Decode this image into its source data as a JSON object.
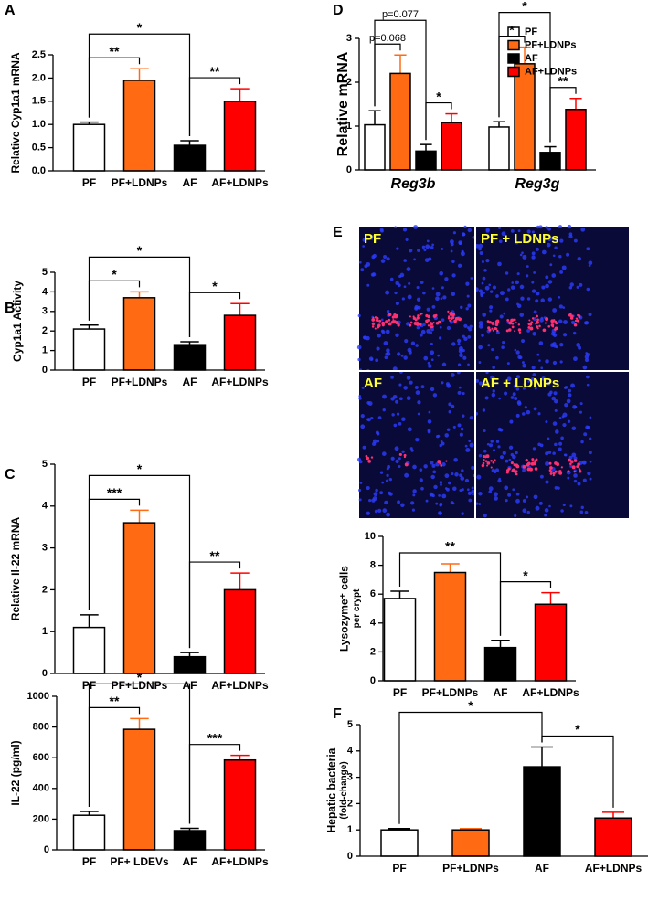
{
  "chart_data": [
    {
      "type": "bar",
      "panel": "A",
      "ylabel": [
        "Relative Cyp1a1 mRNA"
      ],
      "categories": [
        "PF",
        "PF+LDNPs",
        "AF",
        "AF+LDNPs"
      ],
      "values": [
        1.0,
        1.95,
        0.55,
        1.5
      ],
      "errors": [
        0.05,
        0.25,
        0.1,
        0.27
      ],
      "colors": [
        "#ffffff",
        "#ff6a13",
        "#000000",
        "#ff0000"
      ],
      "ylim": [
        0,
        2.5
      ],
      "yticks": [
        {
          "value": 0,
          "label": "0.0"
        },
        0.5,
        {
          "value": 1,
          "label": "1.0"
        },
        1.5,
        {
          "value": 2,
          "label": "2.0"
        },
        2.5
      ],
      "annotations": [
        {
          "text": "**",
          "between": [
            "PF",
            "PF+LDNPs"
          ]
        },
        {
          "text": "*",
          "between": [
            "PF",
            "AF"
          ]
        },
        {
          "text": "**",
          "between": [
            "AF",
            "AF+LDNPs"
          ]
        }
      ]
    },
    {
      "type": "bar",
      "panel": "B",
      "ylabel": [
        "Cyp1a1 Activity"
      ],
      "categories": [
        "PF",
        "PF+LDNPs",
        "AF",
        "AF+LDNPs"
      ],
      "values": [
        2.1,
        3.7,
        1.3,
        2.8
      ],
      "errors": [
        0.2,
        0.3,
        0.15,
        0.6
      ],
      "colors": [
        "#ffffff",
        "#ff6a13",
        "#000000",
        "#ff0000"
      ],
      "ylim": [
        0,
        5
      ],
      "yticks": [
        0,
        1,
        2,
        3,
        4,
        5
      ],
      "annotations": [
        {
          "text": "*",
          "between": [
            "PF",
            "PF+LDNPs"
          ]
        },
        {
          "text": "*",
          "between": [
            "PF",
            "AF"
          ]
        },
        {
          "text": "*",
          "between": [
            "AF",
            "AF+LDNPs"
          ]
        }
      ]
    },
    {
      "type": "bar",
      "panel": "C",
      "ylabel": [
        "Relative Il-22 mRNA"
      ],
      "categories": [
        "PF",
        "PF+LDNPs",
        "AF",
        "AF+LDNPs"
      ],
      "values": [
        1.1,
        3.6,
        0.4,
        2.0
      ],
      "errors": [
        0.3,
        0.3,
        0.1,
        0.4
      ],
      "colors": [
        "#ffffff",
        "#ff6a13",
        "#000000",
        "#ff0000"
      ],
      "ylim": [
        0,
        5
      ],
      "yticks": [
        0,
        1,
        2,
        3,
        4,
        5
      ],
      "annotations": [
        {
          "text": "***",
          "between": [
            "PF",
            "PF+LDNPs"
          ]
        },
        {
          "text": "*",
          "between": [
            "PF",
            "AF"
          ]
        },
        {
          "text": "**",
          "between": [
            "AF",
            "AF+LDNPs"
          ]
        }
      ]
    },
    {
      "type": "bar",
      "ylabel": [
        "IL-22 (pg/ml)"
      ],
      "categories": [
        "PF",
        "PF+ LDEVs",
        "AF",
        "AF+LDNPs"
      ],
      "values": [
        225,
        785,
        125,
        585
      ],
      "errors": [
        25,
        70,
        15,
        30
      ],
      "colors": [
        "#ffffff",
        "#ff6a13",
        "#000000",
        "#ff0000"
      ],
      "ylim": [
        0,
        1000
      ],
      "yticks": [
        0,
        200,
        400,
        600,
        800,
        1000
      ],
      "annotations": [
        {
          "text": "**",
          "between": [
            "PF",
            "PF+ LDEVs"
          ]
        },
        {
          "text": "*",
          "between": [
            "PF",
            "AF"
          ]
        },
        {
          "text": "***",
          "between": [
            "AF",
            "AF+LDNPs"
          ]
        }
      ]
    },
    {
      "type": "grouped_bar",
      "panel": "D",
      "ylabel": [
        "Relative mRNA"
      ],
      "categories": [
        "Reg3b",
        "Reg3g"
      ],
      "series": [
        {
          "name": "PF",
          "color": "#ffffff",
          "values": [
            1.03,
            0.98
          ],
          "errors": [
            0.32,
            0.12
          ]
        },
        {
          "name": "PF+LDNPs",
          "color": "#ff6a13",
          "values": [
            2.2,
            2.42
          ],
          "errors": [
            0.42,
            0.38
          ]
        },
        {
          "name": "AF",
          "color": "#000000",
          "values": [
            0.43,
            0.4
          ],
          "errors": [
            0.15,
            0.13
          ]
        },
        {
          "name": "AF+LDNPs",
          "color": "#ff0000",
          "values": [
            1.08,
            1.38
          ],
          "errors": [
            0.2,
            0.25
          ]
        }
      ],
      "ylim": [
        0,
        3
      ],
      "yticks": [
        0,
        1,
        2,
        3
      ],
      "annotations": [
        {
          "text": "p=0.068",
          "group": "Reg3b",
          "between": [
            "PF",
            "PF+LDNPs"
          ]
        },
        {
          "text": "p=0.077",
          "group": "Reg3b",
          "between": [
            "PF",
            "AF"
          ]
        },
        {
          "text": "*",
          "group": "Reg3b",
          "between": [
            "AF",
            "AF+LDNPs"
          ]
        },
        {
          "text": "*",
          "group": "Reg3g",
          "between": [
            "PF",
            "PF+LDNPs"
          ]
        },
        {
          "text": "*",
          "group": "Reg3g",
          "between": [
            "PF",
            "AF"
          ]
        },
        {
          "text": "**",
          "group": "Reg3g",
          "between": [
            "AF",
            "AF+LDNPs"
          ]
        }
      ]
    },
    {
      "type": "bar",
      "panel": "E",
      "image_labels": [
        "PF",
        "PF + LDNPs",
        "AF",
        "AF + LDNPs"
      ],
      "ylabel": [
        "Lysozyme⁺ cells",
        "per crypt"
      ],
      "categories": [
        "PF",
        "PF+LDNPs",
        "AF",
        "AF+LDNPs"
      ],
      "values": [
        5.7,
        7.5,
        2.3,
        5.3
      ],
      "errors": [
        0.5,
        0.6,
        0.5,
        0.8
      ],
      "colors": [
        "#ffffff",
        "#ff6a13",
        "#000000",
        "#ff0000"
      ],
      "ylim": [
        0,
        10
      ],
      "yticks": [
        0,
        2,
        4,
        6,
        8,
        10
      ],
      "annotations": [
        {
          "text": "**",
          "between": [
            "PF",
            "AF"
          ]
        },
        {
          "text": "*",
          "between": [
            "AF",
            "AF+LDNPs"
          ]
        }
      ]
    },
    {
      "type": "bar",
      "panel": "F",
      "ylabel": [
        "Hepatic bacteria",
        "(fold-change)"
      ],
      "categories": [
        "PF",
        "PF+LDNPs",
        "AF",
        "AF+LDNPs"
      ],
      "values": [
        1.0,
        1.0,
        3.4,
        1.45
      ],
      "errors": [
        0.05,
        0.05,
        0.75,
        0.22
      ],
      "colors": [
        "#ffffff",
        "#ff6a13",
        "#000000",
        "#ff0000"
      ],
      "ylim": [
        0,
        5
      ],
      "yticks": [
        0,
        1,
        2,
        3,
        4,
        5
      ],
      "annotations": [
        {
          "text": "*",
          "between": [
            "PF",
            "AF"
          ]
        },
        {
          "text": "*",
          "between": [
            "AF",
            "AF+LDNPs"
          ]
        }
      ]
    }
  ]
}
